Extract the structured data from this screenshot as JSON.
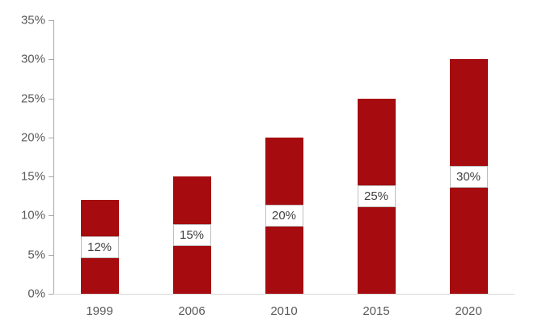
{
  "chart_data": {
    "type": "bar",
    "title": "",
    "xlabel": "",
    "ylabel": "",
    "categories": [
      "1999",
      "2006",
      "2010",
      "2015",
      "2020"
    ],
    "values": [
      12,
      15,
      20,
      25,
      30
    ],
    "data_labels": [
      "12%",
      "15%",
      "20%",
      "25%",
      "30%"
    ],
    "data_label_position": "center",
    "ylim": [
      0,
      35
    ],
    "ytick_step": 5,
    "ytick_labels": [
      "0%",
      "5%",
      "10%",
      "15%",
      "20%",
      "25%",
      "30%",
      "35%"
    ],
    "grid": false,
    "legend": "none"
  },
  "colors": {
    "bar": "#A50B0F",
    "y_axis_line": "#A6A6A6",
    "x_axis_line": "#D9D9D9",
    "axis_text": "#595959",
    "data_label_text": "#404040",
    "data_label_border": "#BFBFBF",
    "data_label_bg": "#FFFFFF",
    "background": "#FFFFFF"
  }
}
